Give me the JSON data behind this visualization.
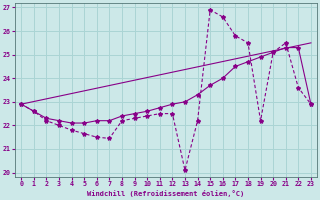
{
  "xlabel": "Windchill (Refroidissement éolien,°C)",
  "bg_color": "#cce8e8",
  "grid_color": "#aad4d4",
  "line_color": "#880088",
  "xlim": [
    -0.5,
    23.5
  ],
  "ylim": [
    19.8,
    27.2
  ],
  "yticks": [
    20,
    21,
    22,
    23,
    24,
    25,
    26,
    27
  ],
  "xticks": [
    0,
    1,
    2,
    3,
    4,
    5,
    6,
    7,
    8,
    9,
    10,
    11,
    12,
    13,
    14,
    15,
    16,
    17,
    18,
    19,
    20,
    21,
    22,
    23
  ],
  "series1_x": [
    0,
    1,
    2,
    3,
    4,
    5,
    6,
    7,
    8,
    9,
    10,
    11,
    12,
    13,
    14,
    15,
    16,
    17,
    18,
    19,
    20,
    21,
    22,
    23
  ],
  "series1_y": [
    22.9,
    22.6,
    22.2,
    22.0,
    21.8,
    21.65,
    21.5,
    21.45,
    22.2,
    22.3,
    22.4,
    22.5,
    22.5,
    20.1,
    22.2,
    26.9,
    26.6,
    25.8,
    25.5,
    22.2,
    25.1,
    25.5,
    23.6,
    22.9
  ],
  "series2_x": [
    0,
    1,
    2,
    3,
    4,
    5,
    6,
    7,
    8,
    9,
    10,
    11,
    12,
    13,
    14,
    15,
    16,
    17,
    18,
    19,
    20,
    21,
    22,
    23
  ],
  "series2_y": [
    22.9,
    22.6,
    22.3,
    22.2,
    22.1,
    22.1,
    22.2,
    22.2,
    22.4,
    22.5,
    22.6,
    22.75,
    22.9,
    23.0,
    23.3,
    23.7,
    24.0,
    24.5,
    24.7,
    24.9,
    25.1,
    25.3,
    25.3,
    22.9
  ],
  "series3_x": [
    0,
    23
  ],
  "series3_y": [
    22.9,
    25.5
  ]
}
